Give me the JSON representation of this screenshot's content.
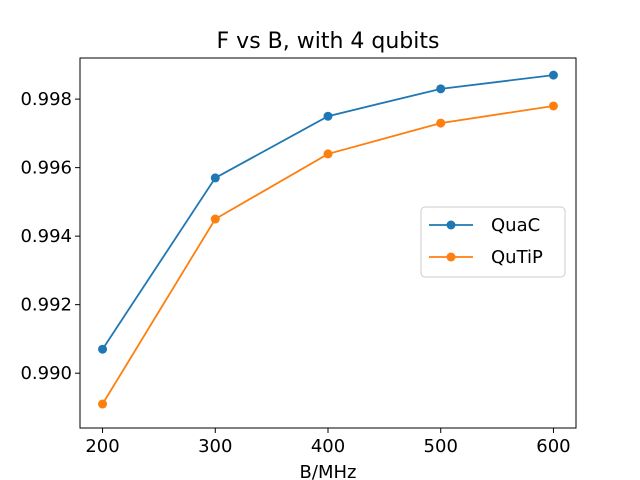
{
  "chart_data": {
    "type": "line",
    "title": "F vs B, with 4 qubits",
    "xlabel": "B/MHz",
    "ylabel": "",
    "x": [
      200,
      300,
      400,
      500,
      600
    ],
    "xlim": [
      180,
      620
    ],
    "ylim": [
      0.9884,
      0.9992
    ],
    "xticks": [
      "200",
      "300",
      "400",
      "500",
      "600"
    ],
    "yticks": [
      "0.990",
      "0.992",
      "0.994",
      "0.996",
      "0.998"
    ],
    "grid": false,
    "legend_position": "center-right",
    "series": [
      {
        "name": "QuaC",
        "color": "#1f77b4",
        "values": [
          0.9907,
          0.9957,
          0.9975,
          0.9983,
          0.9987
        ]
      },
      {
        "name": "QuTiP",
        "color": "#ff7f0e",
        "values": [
          0.9891,
          0.9945,
          0.9964,
          0.9973,
          0.9978
        ]
      }
    ]
  }
}
